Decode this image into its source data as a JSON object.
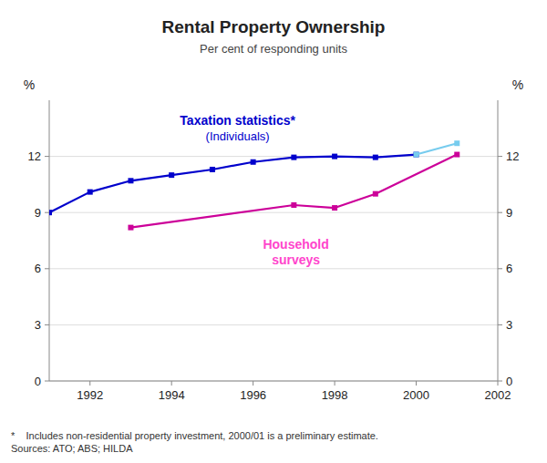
{
  "chart_data": {
    "type": "line",
    "title": "Rental Property Ownership",
    "subtitle": "Per cent of responding units",
    "ylabel": "%",
    "y2label": "%",
    "footnote": "*    Includes non-residential property investment, 2000/01 is a preliminary estimate.\nSources: ATO; ABS; HILDA",
    "xlim": [
      1991,
      2002
    ],
    "xticks": [
      1992,
      1994,
      1996,
      1998,
      2000,
      2002
    ],
    "ylim": [
      0,
      15
    ],
    "yticks": [
      0,
      3,
      6,
      9,
      12
    ],
    "y2lim": [
      0,
      15
    ],
    "y2ticks": [
      0,
      3,
      6,
      9,
      12
    ],
    "grid": true,
    "series": [
      {
        "color": "#0000cc",
        "marker": "square",
        "x": [
          1991,
          1992,
          1993,
          1994,
          1995,
          1996,
          1997,
          1998,
          1999,
          2000
        ],
        "values": [
          9.0,
          10.1,
          10.7,
          11.0,
          11.3,
          11.7,
          11.95,
          12.0,
          11.95,
          12.1
        ]
      },
      {
        "color": "#77ccee",
        "marker": "square",
        "x": [
          2000,
          2001
        ],
        "values": [
          12.1,
          12.7
        ]
      },
      {
        "color": "#cc0099",
        "marker": "square",
        "x": [
          1993,
          1997,
          1998,
          1999,
          2001
        ],
        "values": [
          8.2,
          9.4,
          9.25,
          10.0,
          12.1
        ]
      }
    ],
    "annotations": [
      {
        "text": "Taxation statistics*",
        "color": "#0000cc"
      },
      {
        "text": "(Individuals)",
        "color": "#0000cc"
      },
      {
        "text": "Household\nsurveys",
        "color": "#ff44cc"
      }
    ]
  }
}
